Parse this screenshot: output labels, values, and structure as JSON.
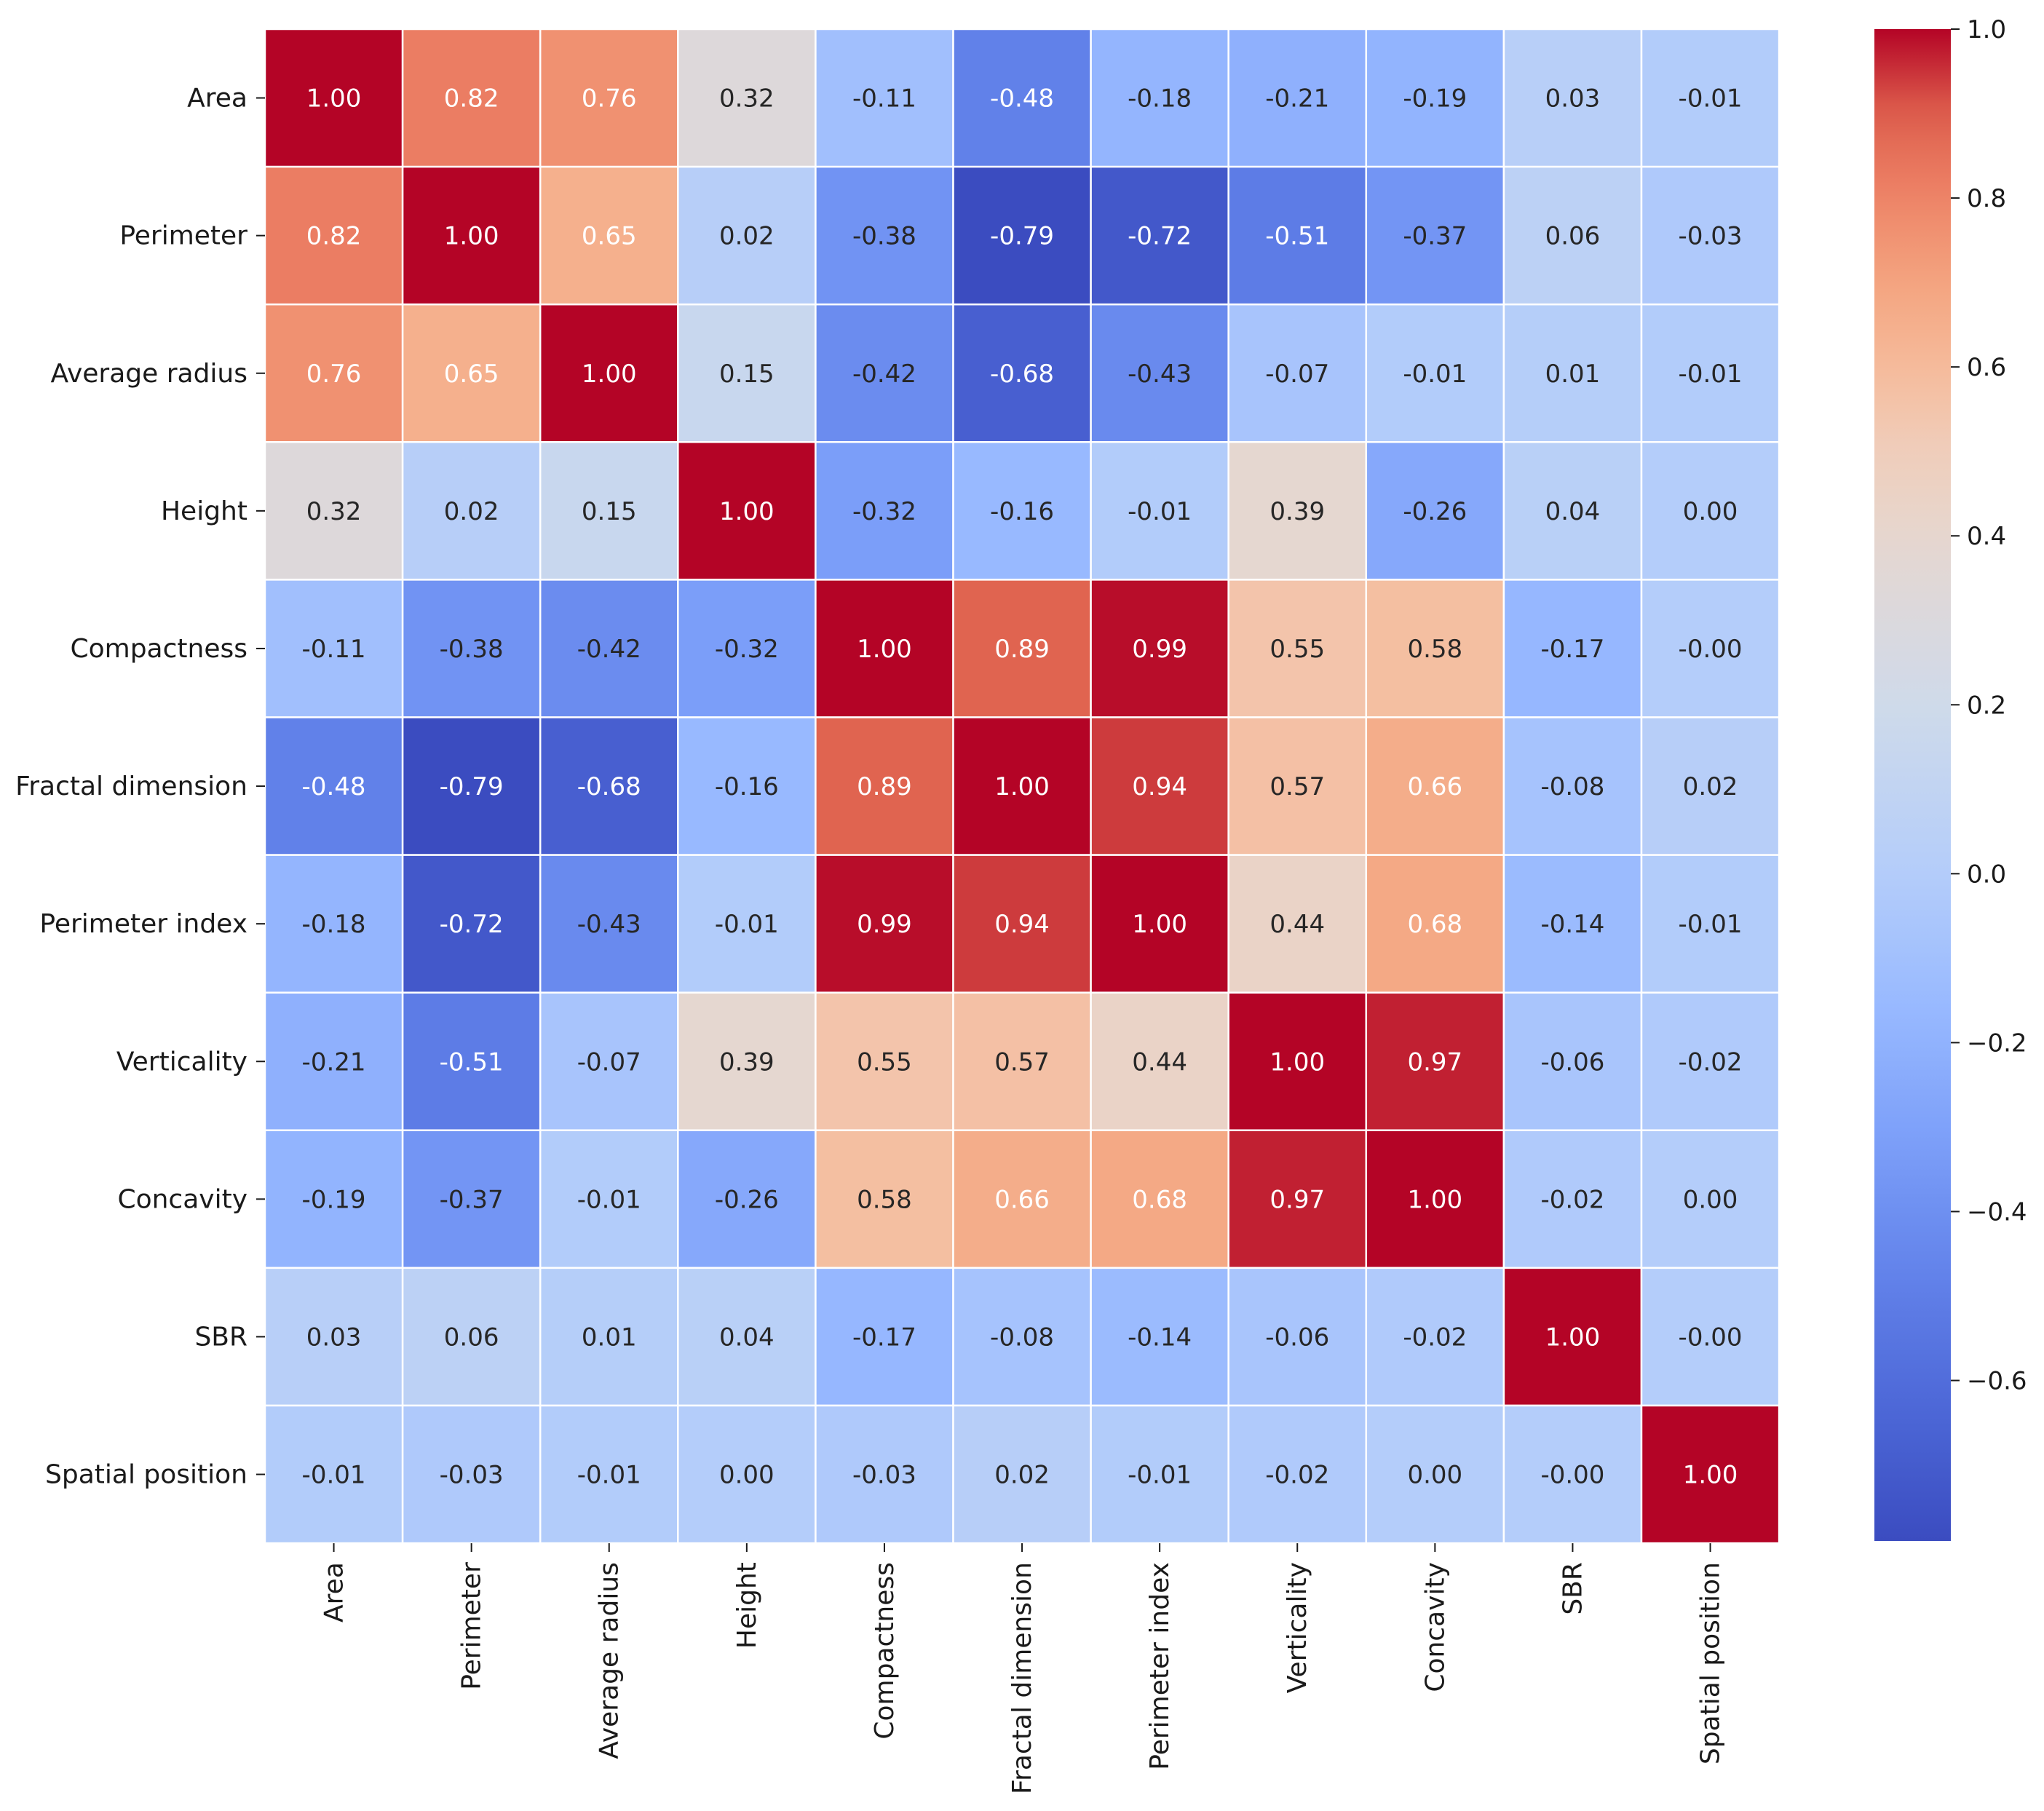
{
  "chart_data": {
    "type": "heatmap",
    "title": "",
    "xlabel": "",
    "ylabel": "",
    "labels": [
      "Area",
      "Perimeter",
      "Average radius",
      "Height",
      "Compactness",
      "Fractal dimension",
      "Perimeter index",
      "Verticality",
      "Concavity",
      "SBR",
      "Spatial position"
    ],
    "values": [
      [
        1.0,
        0.82,
        0.76,
        0.32,
        -0.11,
        -0.48,
        -0.18,
        -0.21,
        -0.19,
        0.03,
        -0.01
      ],
      [
        0.82,
        1.0,
        0.65,
        0.02,
        -0.38,
        -0.79,
        -0.72,
        -0.51,
        -0.37,
        0.06,
        -0.03
      ],
      [
        0.76,
        0.65,
        1.0,
        0.15,
        -0.42,
        -0.68,
        -0.43,
        -0.07,
        -0.01,
        0.01,
        -0.01
      ],
      [
        0.32,
        0.02,
        0.15,
        1.0,
        -0.32,
        -0.16,
        -0.01,
        0.39,
        -0.26,
        0.04,
        0.0
      ],
      [
        -0.11,
        -0.38,
        -0.42,
        -0.32,
        1.0,
        0.89,
        0.99,
        0.55,
        0.58,
        -0.17,
        -0.0
      ],
      [
        -0.48,
        -0.79,
        -0.68,
        -0.16,
        0.89,
        1.0,
        0.94,
        0.57,
        0.66,
        -0.08,
        0.02
      ],
      [
        -0.18,
        -0.72,
        -0.43,
        -0.01,
        0.99,
        0.94,
        1.0,
        0.44,
        0.68,
        -0.14,
        -0.01
      ],
      [
        -0.21,
        -0.51,
        -0.07,
        0.39,
        0.55,
        0.57,
        0.44,
        1.0,
        0.97,
        -0.06,
        -0.02
      ],
      [
        -0.19,
        -0.37,
        -0.01,
        -0.26,
        0.58,
        0.66,
        0.68,
        0.97,
        1.0,
        -0.02,
        0.0
      ],
      [
        0.03,
        0.06,
        0.01,
        0.04,
        -0.17,
        -0.08,
        -0.14,
        -0.06,
        -0.02,
        1.0,
        -0.0
      ],
      [
        -0.01,
        -0.03,
        -0.01,
        0.0,
        -0.03,
        0.02,
        -0.01,
        -0.02,
        0.0,
        -0.0,
        1.0
      ]
    ],
    "cell_text": [
      [
        "1.00",
        "0.82",
        "0.76",
        "0.32",
        "-0.11",
        "-0.48",
        "-0.18",
        "-0.21",
        "-0.19",
        "0.03",
        "-0.01"
      ],
      [
        "0.82",
        "1.00",
        "0.65",
        "0.02",
        "-0.38",
        "-0.79",
        "-0.72",
        "-0.51",
        "-0.37",
        "0.06",
        "-0.03"
      ],
      [
        "0.76",
        "0.65",
        "1.00",
        "0.15",
        "-0.42",
        "-0.68",
        "-0.43",
        "-0.07",
        "-0.01",
        "0.01",
        "-0.01"
      ],
      [
        "0.32",
        "0.02",
        "0.15",
        "1.00",
        "-0.32",
        "-0.16",
        "-0.01",
        "0.39",
        "-0.26",
        "0.04",
        "0.00"
      ],
      [
        "-0.11",
        "-0.38",
        "-0.42",
        "-0.32",
        "1.00",
        "0.89",
        "0.99",
        "0.55",
        "0.58",
        "-0.17",
        "-0.00"
      ],
      [
        "-0.48",
        "-0.79",
        "-0.68",
        "-0.16",
        "0.89",
        "1.00",
        "0.94",
        "0.57",
        "0.66",
        "-0.08",
        "0.02"
      ],
      [
        "-0.18",
        "-0.72",
        "-0.43",
        "-0.01",
        "0.99",
        "0.94",
        "1.00",
        "0.44",
        "0.68",
        "-0.14",
        "-0.01"
      ],
      [
        "-0.21",
        "-0.51",
        "-0.07",
        "0.39",
        "0.55",
        "0.57",
        "0.44",
        "1.00",
        "0.97",
        "-0.06",
        "-0.02"
      ],
      [
        "-0.19",
        "-0.37",
        "-0.01",
        "-0.26",
        "0.58",
        "0.66",
        "0.68",
        "0.97",
        "1.00",
        "-0.02",
        "0.00"
      ],
      [
        "0.03",
        "0.06",
        "0.01",
        "0.04",
        "-0.17",
        "-0.08",
        "-0.14",
        "-0.06",
        "-0.02",
        "1.00",
        "-0.00"
      ],
      [
        "-0.01",
        "-0.03",
        "-0.01",
        "0.00",
        "-0.03",
        "0.02",
        "-0.01",
        "-0.02",
        "0.00",
        "-0.00",
        "1.00"
      ]
    ],
    "colorbar": {
      "range": [
        -0.79,
        1.0
      ],
      "ticks": [
        1.0,
        0.8,
        0.6,
        0.4,
        0.2,
        0.0,
        -0.2,
        -0.4,
        -0.6
      ],
      "tick_labels": [
        "1.0",
        "0.8",
        "0.6",
        "0.4",
        "0.2",
        "0.0",
        "−0.2",
        "−0.4",
        "−0.6"
      ],
      "colormap": "coolwarm",
      "low_color": "#3b4cc0",
      "mid_color": "#dddddd",
      "high_color": "#b40426",
      "placement": "right"
    },
    "grid": true,
    "grid_color": "#ffffff"
  }
}
